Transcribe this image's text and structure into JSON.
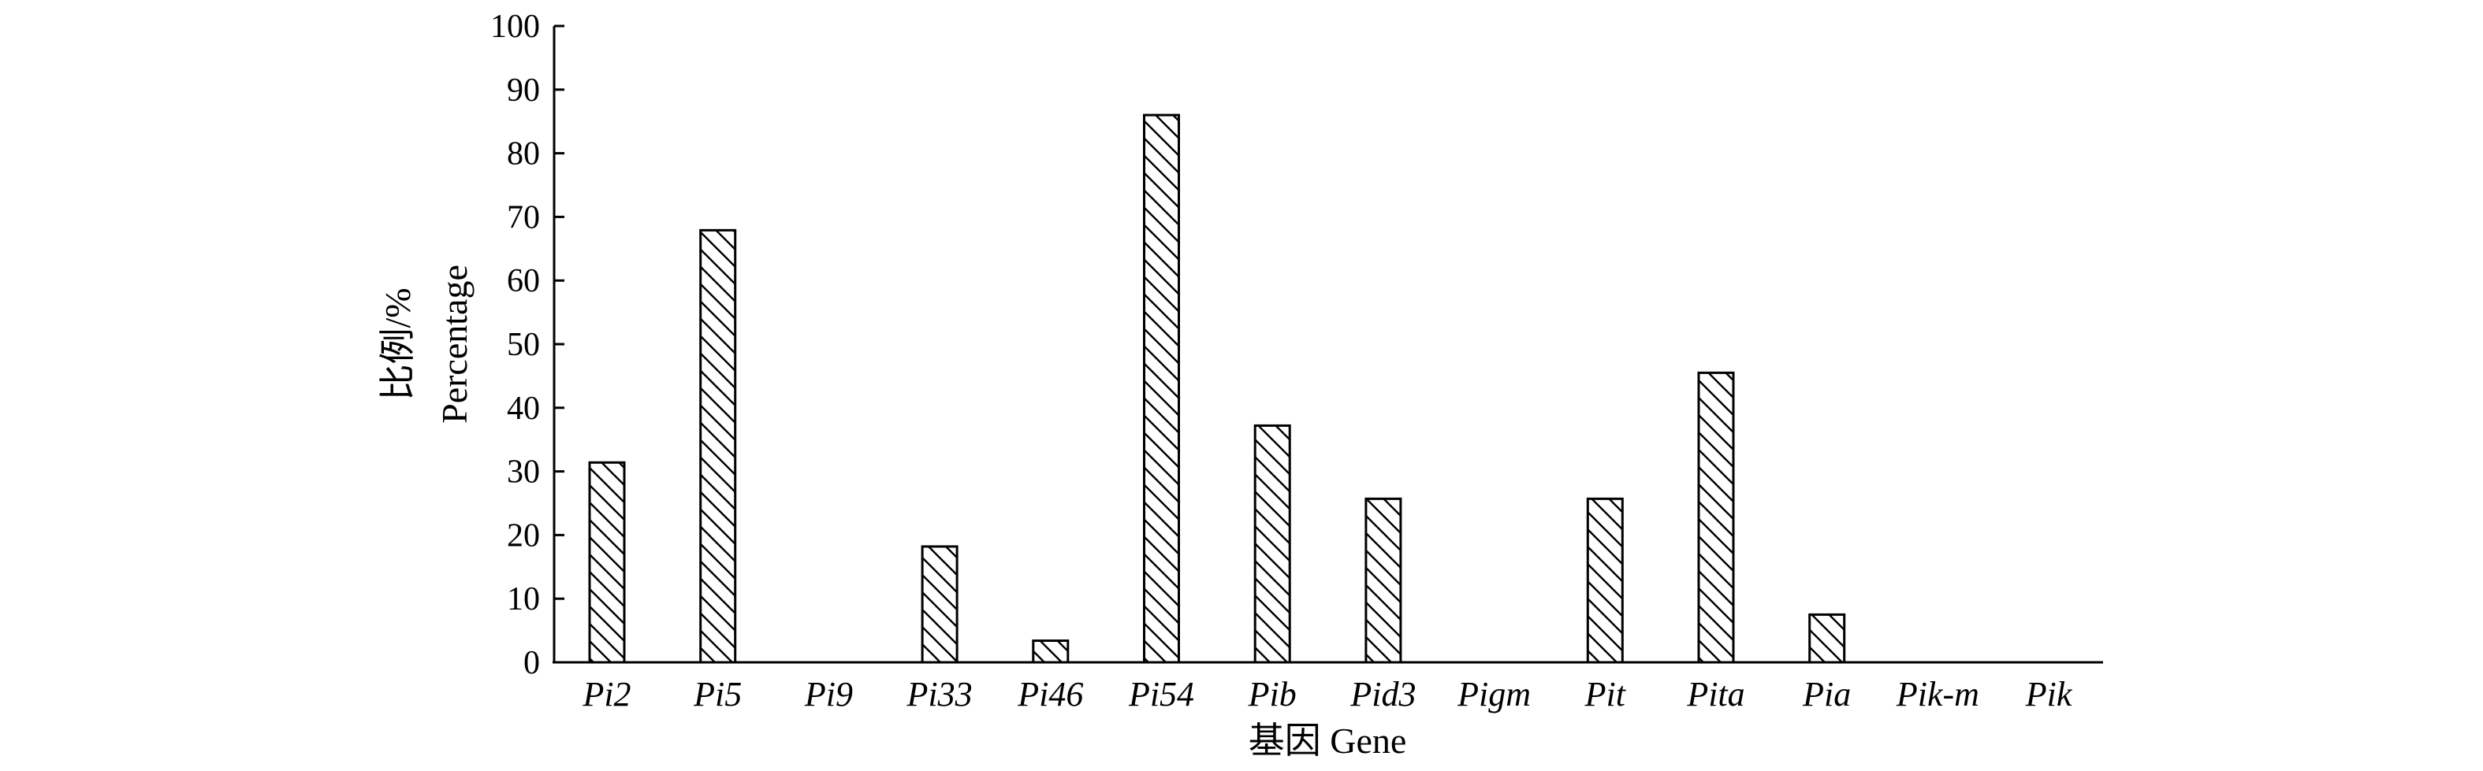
{
  "chart_data": {
    "type": "bar",
    "categories": [
      "Pi2",
      "Pi5",
      "Pi9",
      "Pi33",
      "Pi46",
      "Pi54",
      "Pib",
      "Pid3",
      "Pigm",
      "Pit",
      "Pita",
      "Pia",
      "Pik-m",
      "Pik"
    ],
    "values": [
      31.4,
      67.9,
      0,
      18.2,
      3.4,
      86.0,
      37.2,
      25.7,
      0,
      25.7,
      45.5,
      7.5,
      0,
      0
    ],
    "ylim": [
      0,
      100
    ],
    "yticks": [
      0,
      10,
      20,
      30,
      40,
      50,
      60,
      70,
      80,
      90,
      100
    ],
    "ylabel_line1": "比例/%",
    "ylabel_line2": "Percentage",
    "xlabel": "基因 Gene",
    "grid": false,
    "bar_fill": "diagonal-hatch"
  }
}
